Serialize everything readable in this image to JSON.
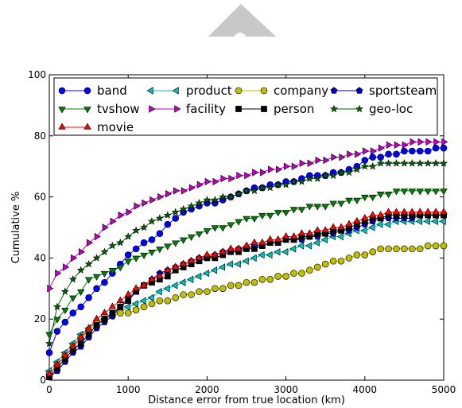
{
  "chart_data": {
    "type": "line",
    "title": "",
    "xlabel": "Distance error from true location (km)",
    "ylabel": "Cumulative %",
    "xlim": [
      0,
      5000
    ],
    "ylim": [
      0,
      100
    ],
    "xticks": [
      0,
      1000,
      2000,
      3000,
      4000,
      5000
    ],
    "yticks": [
      0,
      20,
      40,
      60,
      80,
      100
    ],
    "grid": false,
    "legend_position": "top",
    "legend_columns": 4,
    "x": [
      0,
      100,
      200,
      300,
      400,
      500,
      600,
      700,
      800,
      900,
      1000,
      1100,
      1200,
      1300,
      1400,
      1500,
      1600,
      1700,
      1800,
      1900,
      2000,
      2100,
      2200,
      2300,
      2400,
      2500,
      2600,
      2700,
      2800,
      2900,
      3000,
      3100,
      3200,
      3300,
      3400,
      3500,
      3600,
      3700,
      3800,
      3900,
      4000,
      4100,
      4200,
      4300,
      4400,
      4500,
      4600,
      4700,
      4800,
      4900,
      5000
    ],
    "series": [
      {
        "name": "band",
        "color": "#0000ff",
        "marker": "circle",
        "values": [
          9,
          16,
          19,
          22,
          24,
          27,
          30,
          32,
          35,
          38,
          41,
          43,
          45,
          46,
          48,
          51,
          53,
          55,
          56,
          57,
          58,
          58,
          59,
          60,
          61,
          62,
          63,
          63,
          64,
          64,
          65,
          65,
          66,
          67,
          67,
          67,
          68,
          68,
          69,
          70,
          72,
          73,
          73,
          74,
          74,
          75,
          75,
          75,
          75,
          76,
          76
        ]
      },
      {
        "name": "product",
        "color": "#00bfbf",
        "marker": "triangle-left",
        "values": [
          3,
          6,
          9,
          12,
          15,
          17,
          19,
          20,
          21,
          22,
          24,
          25,
          26,
          27,
          29,
          30,
          31,
          32,
          33,
          34,
          35,
          36,
          37,
          38,
          38,
          39,
          40,
          41,
          41,
          42,
          42,
          43,
          44,
          44,
          45,
          46,
          47,
          47,
          48,
          49,
          49,
          50,
          51,
          51,
          52,
          52,
          52,
          52,
          52,
          52,
          52
        ]
      },
      {
        "name": "company",
        "color": "#bfbf00",
        "marker": "circle",
        "values": [
          2,
          5,
          8,
          11,
          14,
          16,
          19,
          20,
          21,
          22,
          22,
          23,
          24,
          25,
          26,
          26,
          27,
          28,
          28,
          29,
          29,
          30,
          30,
          31,
          31,
          32,
          32,
          33,
          33,
          34,
          34,
          35,
          35,
          36,
          37,
          38,
          39,
          39,
          40,
          41,
          41,
          42,
          43,
          43,
          43,
          43,
          43,
          43,
          44,
          44,
          44
        ]
      },
      {
        "name": "sportsteam",
        "color": "#0000bf",
        "marker": "pentagon",
        "values": [
          1,
          3,
          6,
          9,
          11,
          14,
          17,
          19,
          21,
          24,
          27,
          29,
          31,
          33,
          35,
          36,
          37,
          38,
          39,
          40,
          40,
          41,
          42,
          42,
          43,
          43,
          44,
          44,
          45,
          45,
          46,
          46,
          46,
          47,
          47,
          48,
          48,
          49,
          49,
          50,
          51,
          52,
          53,
          53,
          53,
          53,
          53,
          54,
          54,
          54,
          54
        ]
      },
      {
        "name": "tvshow",
        "color": "#008000",
        "marker": "triangle-down",
        "values": [
          15,
          20,
          23,
          27,
          29,
          33,
          34,
          35,
          36,
          37,
          39,
          40,
          41,
          42,
          43,
          44,
          45,
          46,
          47,
          48,
          49,
          50,
          50,
          51,
          52,
          53,
          53,
          54,
          54,
          55,
          55,
          56,
          56,
          57,
          57,
          57,
          58,
          58,
          59,
          59,
          60,
          60,
          61,
          61,
          62,
          62,
          62,
          62,
          62,
          62,
          62
        ]
      },
      {
        "name": "facility",
        "color": "#bf00bf",
        "marker": "triangle-right",
        "values": [
          30,
          35,
          37,
          40,
          42,
          45,
          47,
          50,
          52,
          54,
          55,
          57,
          58,
          59,
          60,
          61,
          62,
          62,
          63,
          64,
          65,
          65,
          66,
          66,
          67,
          67,
          68,
          68,
          69,
          69,
          70,
          70,
          71,
          71,
          72,
          72,
          73,
          73,
          74,
          74,
          75,
          75,
          76,
          77,
          77,
          77,
          78,
          78,
          78,
          78,
          78
        ]
      },
      {
        "name": "person",
        "color": "#000000",
        "marker": "square",
        "values": [
          1,
          4,
          7,
          10,
          12,
          15,
          18,
          20,
          22,
          24,
          26,
          29,
          31,
          32,
          33,
          34,
          36,
          37,
          38,
          39,
          40,
          40,
          41,
          42,
          42,
          43,
          43,
          44,
          45,
          45,
          46,
          46,
          47,
          47,
          48,
          48,
          49,
          49,
          50,
          51,
          52,
          53,
          53,
          54,
          54,
          54,
          54,
          54,
          54,
          54,
          54
        ]
      },
      {
        "name": "geo-loc",
        "color": "#006400",
        "marker": "star",
        "values": [
          12,
          24,
          29,
          33,
          36,
          38,
          40,
          42,
          44,
          45,
          47,
          49,
          50,
          52,
          53,
          54,
          55,
          56,
          57,
          58,
          59,
          59,
          60,
          60,
          61,
          62,
          62,
          63,
          63,
          64,
          64,
          65,
          65,
          66,
          66,
          67,
          67,
          68,
          68,
          69,
          70,
          70,
          71,
          71,
          71,
          71,
          71,
          71,
          71,
          71,
          71
        ]
      },
      {
        "name": "movie",
        "color": "#ff0000",
        "marker": "triangle-up",
        "values": [
          2,
          5,
          8,
          11,
          14,
          17,
          20,
          22,
          24,
          26,
          28,
          30,
          31,
          33,
          34,
          36,
          37,
          38,
          39,
          40,
          41,
          41,
          42,
          43,
          43,
          44,
          45,
          45,
          46,
          46,
          47,
          47,
          48,
          48,
          49,
          49,
          50,
          50,
          51,
          52,
          53,
          54,
          54,
          55,
          55,
          55,
          55,
          55,
          55,
          55,
          55
        ]
      }
    ],
    "legend": [
      {
        "name": "band",
        "color": "#0000ff",
        "marker": "circle"
      },
      {
        "name": "product",
        "color": "#00bfbf",
        "marker": "triangle-left"
      },
      {
        "name": "company",
        "color": "#bfbf00",
        "marker": "circle"
      },
      {
        "name": "sportsteam",
        "color": "#0000bf",
        "marker": "pentagon"
      },
      {
        "name": "tvshow",
        "color": "#008000",
        "marker": "triangle-down"
      },
      {
        "name": "facility",
        "color": "#bf00bf",
        "marker": "triangle-right"
      },
      {
        "name": "person",
        "color": "#000000",
        "marker": "square"
      },
      {
        "name": "geo-loc",
        "color": "#006400",
        "marker": "star"
      },
      {
        "name": "movie",
        "color": "#ff0000",
        "marker": "triangle-up"
      }
    ]
  },
  "decor": {
    "watermark_color": "#c8c8c8"
  }
}
